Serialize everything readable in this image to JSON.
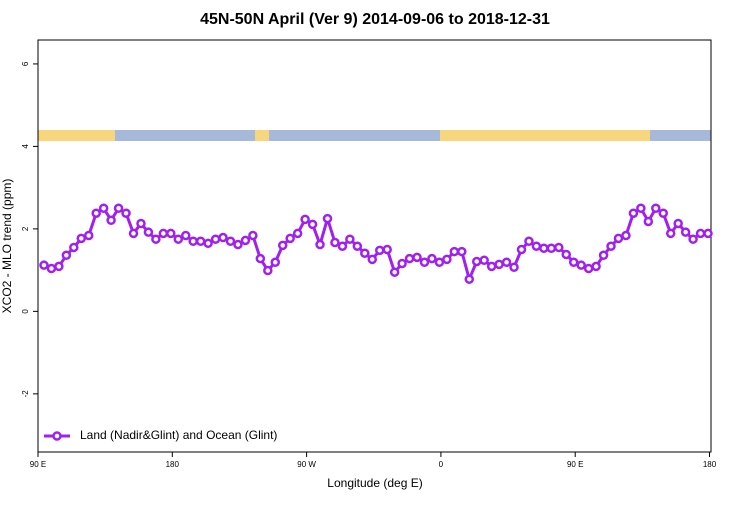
{
  "chart_data": {
    "type": "line",
    "title": "45N-50N April (Ver 9)   2014-09-06 to 2018-12-31",
    "x_label": "Longitude (deg E)",
    "y_label": "XCO2 - MLO trend (ppm)",
    "x": [
      94,
      99,
      104,
      109,
      114,
      119,
      124,
      129,
      134,
      139,
      144,
      149,
      154,
      159,
      164,
      169,
      174,
      179,
      184,
      189,
      194,
      199,
      204,
      209,
      214,
      219,
      224,
      229,
      234,
      239,
      244,
      249,
      254,
      259,
      264,
      269,
      274,
      279,
      284,
      289,
      294,
      299,
      304,
      309,
      314,
      319,
      324,
      329,
      334,
      339,
      344,
      349,
      354,
      359,
      364,
      369,
      374,
      379,
      384,
      389,
      394,
      399,
      404,
      409,
      414,
      419,
      424,
      429,
      434,
      439,
      444,
      449,
      454,
      459,
      464,
      469,
      474,
      479,
      484,
      489,
      494,
      499,
      504,
      509,
      514,
      519,
      524,
      529,
      534,
      539
    ],
    "series": [
      {
        "name": "Land (Nadir&Glint) and Ocean (Glint)",
        "color": "#a020f0",
        "values": [
          1.12,
          1.04,
          1.09,
          1.36,
          1.55,
          1.77,
          1.84,
          2.38,
          2.5,
          2.21,
          2.5,
          2.38,
          1.89,
          2.13,
          1.92,
          1.75,
          1.89,
          1.89,
          1.75,
          1.84,
          1.7,
          1.7,
          1.65,
          1.75,
          1.79,
          1.7,
          1.62,
          1.72,
          1.84,
          1.28,
          0.99,
          1.19,
          1.6,
          1.77,
          1.89,
          2.23,
          2.11,
          1.62,
          2.25,
          1.67,
          1.58,
          1.75,
          1.58,
          1.41,
          1.26,
          1.48,
          1.5,
          0.95,
          1.16,
          1.28,
          1.31,
          1.19,
          1.28,
          1.19,
          1.26,
          1.45,
          1.45,
          0.78,
          1.21,
          1.24,
          1.09,
          1.14,
          1.19,
          1.07,
          1.5,
          1.7,
          1.58,
          1.53,
          1.53,
          1.55,
          1.38,
          1.19,
          1.12,
          1.04,
          1.09,
          1.36,
          1.58,
          1.77,
          1.84,
          2.38,
          2.5,
          2.18,
          2.5,
          2.38,
          1.89,
          2.13,
          1.92,
          1.75,
          1.89,
          1.89
        ]
      }
    ],
    "xlim": [
      90,
      541
    ],
    "xticks": [
      {
        "value": 90,
        "label": "90 E"
      },
      180,
      {
        "value": 270,
        "label": "90 W"
      },
      {
        "value": 360,
        "label": "0"
      },
      {
        "value": 450,
        "label": "90 E"
      },
      {
        "value": 540,
        "label": "180"
      }
    ],
    "ylim": [
      -3.41,
      6.58
    ],
    "yticks": [
      -2,
      0,
      2,
      4,
      6
    ],
    "legend": "bottom-left"
  }
}
